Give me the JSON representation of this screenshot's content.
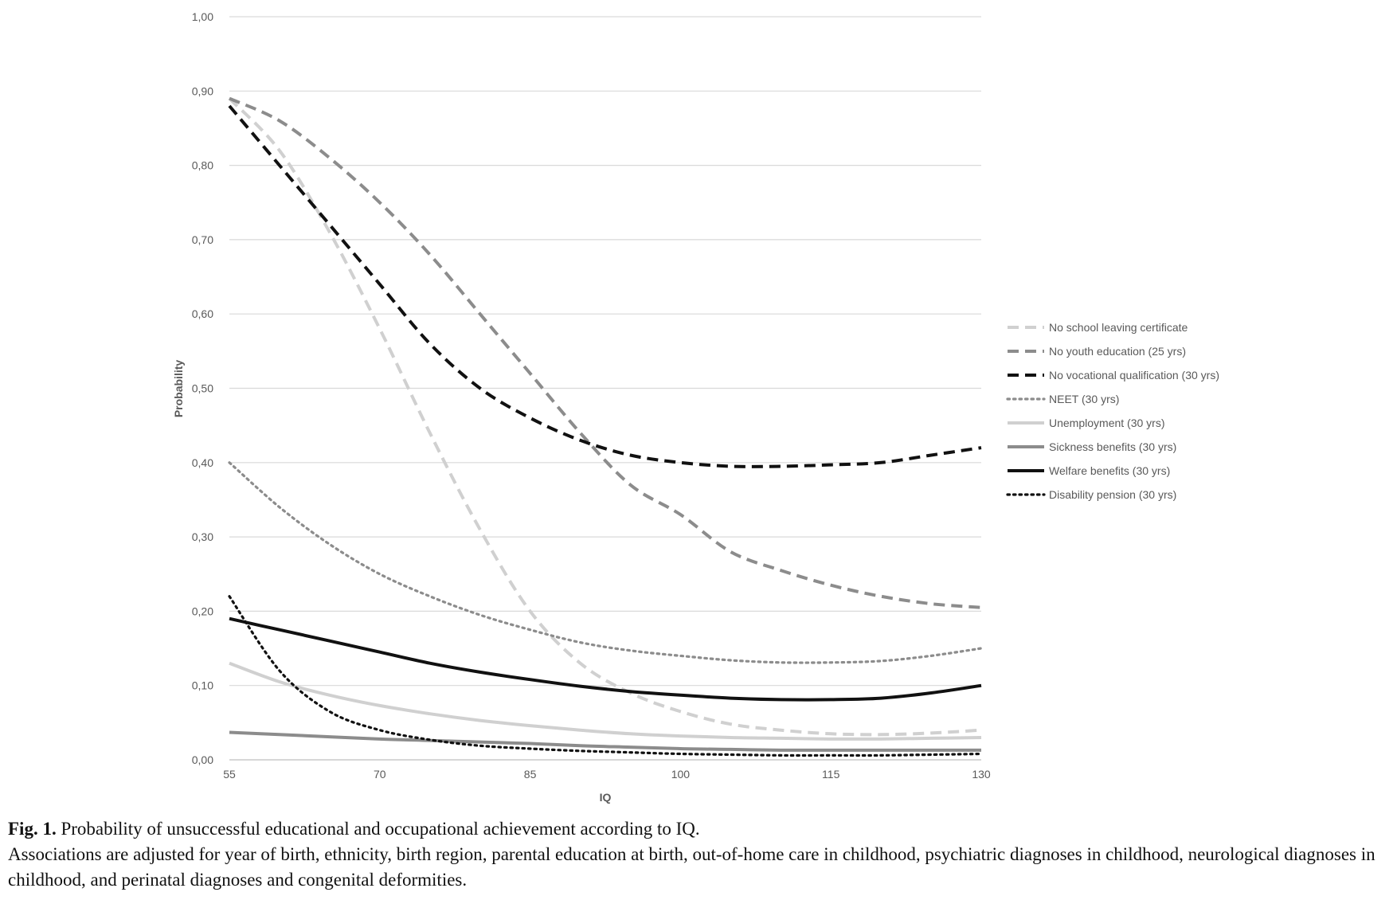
{
  "chart_data": {
    "type": "line",
    "title": "",
    "xlabel": "IQ",
    "ylabel": "Probability",
    "xlim": [
      55,
      130
    ],
    "ylim": [
      0,
      1
    ],
    "x_ticks": [
      "55",
      "70",
      "85",
      "100",
      "115",
      "130"
    ],
    "y_ticks": [
      "0,00",
      "0,10",
      "0,20",
      "0,30",
      "0,40",
      "0,50",
      "0,60",
      "0,70",
      "0,80",
      "0,90",
      "1,00"
    ],
    "grid": "horizontal",
    "legend_position": "right",
    "x": [
      55,
      60,
      65,
      70,
      75,
      80,
      85,
      90,
      95,
      100,
      105,
      110,
      115,
      120,
      125,
      130
    ],
    "series": [
      {
        "name": "No school leaving certificate",
        "style": "dashed",
        "color": "#d0d0d0",
        "values": [
          0.89,
          0.82,
          0.71,
          0.58,
          0.44,
          0.31,
          0.2,
          0.13,
          0.09,
          0.065,
          0.048,
          0.04,
          0.035,
          0.034,
          0.036,
          0.04
        ]
      },
      {
        "name": "No youth education (25 yrs)",
        "style": "dashed",
        "color": "#8c8c8c",
        "values": [
          0.89,
          0.86,
          0.81,
          0.75,
          0.68,
          0.6,
          0.52,
          0.44,
          0.37,
          0.33,
          0.28,
          0.255,
          0.235,
          0.22,
          0.21,
          0.205
        ]
      },
      {
        "name": "No vocational qualification (30 yrs)",
        "style": "dashed",
        "color": "#111111",
        "values": [
          0.88,
          0.8,
          0.72,
          0.64,
          0.56,
          0.5,
          0.46,
          0.43,
          0.41,
          0.4,
          0.395,
          0.395,
          0.397,
          0.4,
          0.41,
          0.42
        ]
      },
      {
        "name": "NEET (30 yrs)",
        "style": "dotted",
        "color": "#8c8c8c",
        "values": [
          0.4,
          0.34,
          0.29,
          0.25,
          0.22,
          0.195,
          0.175,
          0.158,
          0.147,
          0.14,
          0.134,
          0.131,
          0.131,
          0.133,
          0.14,
          0.15
        ]
      },
      {
        "name": "Unemployment (30 yrs)",
        "style": "solid",
        "color": "#d0d0d0",
        "values": [
          0.13,
          0.105,
          0.087,
          0.073,
          0.062,
          0.053,
          0.046,
          0.04,
          0.035,
          0.032,
          0.03,
          0.029,
          0.028,
          0.028,
          0.029,
          0.03
        ]
      },
      {
        "name": "Sickness benefits (30 yrs)",
        "style": "solid",
        "color": "#8c8c8c",
        "values": [
          0.037,
          0.034,
          0.031,
          0.028,
          0.026,
          0.024,
          0.022,
          0.019,
          0.017,
          0.015,
          0.014,
          0.013,
          0.013,
          0.013,
          0.013,
          0.013
        ]
      },
      {
        "name": "Welfare benefits (30 yrs)",
        "style": "solid",
        "color": "#111111",
        "values": [
          0.19,
          0.175,
          0.16,
          0.145,
          0.13,
          0.118,
          0.108,
          0.099,
          0.092,
          0.087,
          0.083,
          0.081,
          0.081,
          0.083,
          0.09,
          0.1
        ]
      },
      {
        "name": "Disability pension (30 yrs)",
        "style": "dotted",
        "color": "#111111",
        "values": [
          0.22,
          0.12,
          0.065,
          0.04,
          0.027,
          0.019,
          0.015,
          0.012,
          0.01,
          0.008,
          0.007,
          0.006,
          0.006,
          0.006,
          0.007,
          0.008
        ]
      }
    ]
  },
  "caption": {
    "label": "Fig. 1.",
    "title": "Probability of unsuccessful educational and occupational achievement according to IQ.",
    "note": "Associations are adjusted for year of birth, ethnicity, birth region, parental education at birth, out-of-home care in childhood, psychiatric diagnoses in childhood, neurological diagnoses in childhood, and perinatal diagnoses and congenital deformities."
  }
}
